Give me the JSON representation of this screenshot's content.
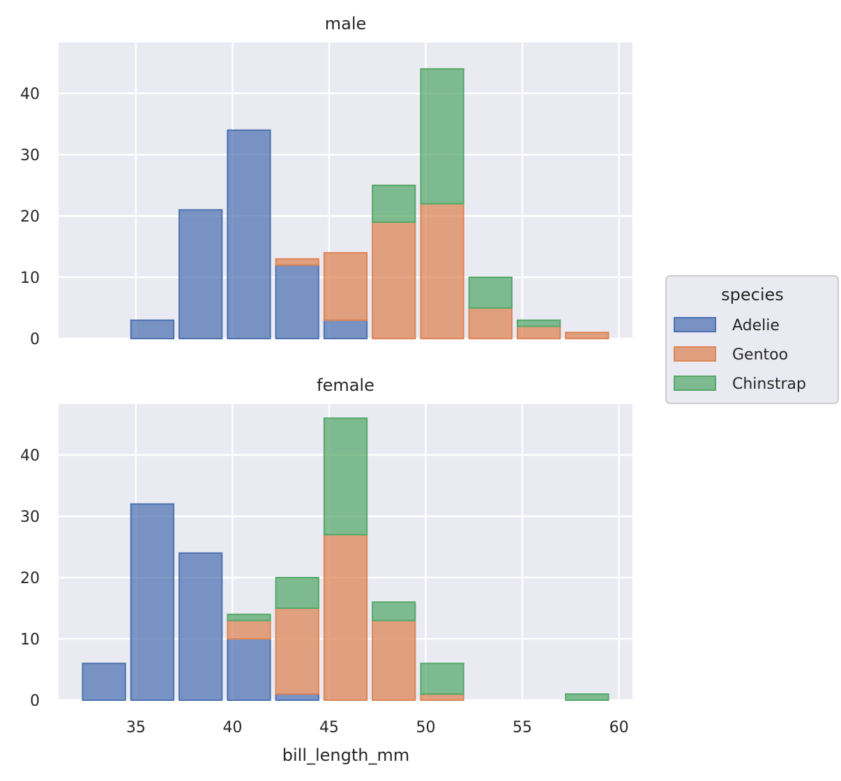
{
  "chart_data": {
    "type": "bar",
    "subtype": "stacked histogram, faceted by sex",
    "xlabel": "bill_length_mm",
    "ylabel": "",
    "xlim": [
      31.0,
      60.7
    ],
    "ylim": [
      0,
      48.3
    ],
    "xticks": [
      35,
      40,
      45,
      50,
      55,
      60
    ],
    "yticks": [
      0,
      10,
      20,
      30,
      40
    ],
    "grid": true,
    "bin_start": 32.1,
    "bin_width": 2.5,
    "legend": {
      "title": "species",
      "placement": "right",
      "entries": [
        "Adelie",
        "Gentoo",
        "Chinstrap"
      ]
    },
    "colors": {
      "Adelie": "#4c72b0",
      "Gentoo": "#dd8452",
      "Chinstrap": "#55a868"
    },
    "facets": [
      {
        "title": "male",
        "series": [
          {
            "name": "Adelie",
            "values": [
              0,
              3,
              21,
              34,
              12,
              3,
              0,
              0,
              0,
              0,
              0
            ]
          },
          {
            "name": "Gentoo",
            "values": [
              0,
              0,
              0,
              0,
              1,
              11,
              19,
              22,
              5,
              2,
              1
            ]
          },
          {
            "name": "Chinstrap",
            "values": [
              0,
              0,
              0,
              0,
              0,
              0,
              6,
              22,
              5,
              1,
              0
            ]
          }
        ]
      },
      {
        "title": "female",
        "series": [
          {
            "name": "Adelie",
            "values": [
              6,
              32,
              24,
              10,
              1,
              0,
              0,
              0,
              0,
              0,
              0
            ]
          },
          {
            "name": "Gentoo",
            "values": [
              0,
              0,
              0,
              3,
              14,
              27,
              13,
              1,
              0,
              0,
              0
            ]
          },
          {
            "name": "Chinstrap",
            "values": [
              0,
              0,
              0,
              1,
              5,
              19,
              3,
              5,
              0,
              0,
              1
            ]
          }
        ]
      }
    ]
  }
}
